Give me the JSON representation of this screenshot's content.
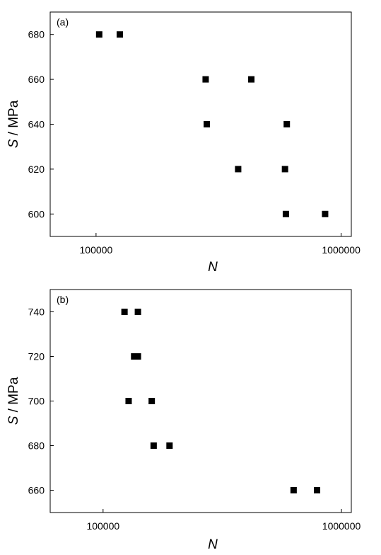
{
  "chart_data": [
    {
      "type": "scatter",
      "panel_label": "(a)",
      "xlabel": "N",
      "ylabel_symbol": "S",
      "ylabel_unit": "/ MPa",
      "x_scale": "log",
      "xticks": [
        100000,
        1000000
      ],
      "xtick_labels": [
        "100000",
        "1000000"
      ],
      "yticks": [
        600,
        620,
        640,
        660,
        680
      ],
      "ytick_labels": [
        "600",
        "620",
        "640",
        "660",
        "680"
      ],
      "xlim": [
        65000,
        1100000
      ],
      "ylim": [
        590,
        690
      ],
      "grid": false,
      "legend": "none",
      "marker": "square",
      "color": "#000000",
      "points": [
        {
          "x": 103000,
          "y": 680
        },
        {
          "x": 125000,
          "y": 680
        },
        {
          "x": 280000,
          "y": 660
        },
        {
          "x": 430000,
          "y": 660
        },
        {
          "x": 283000,
          "y": 640
        },
        {
          "x": 600000,
          "y": 640
        },
        {
          "x": 380000,
          "y": 620
        },
        {
          "x": 590000,
          "y": 620
        },
        {
          "x": 595000,
          "y": 600
        },
        {
          "x": 860000,
          "y": 600
        }
      ]
    },
    {
      "type": "scatter",
      "panel_label": "(b)",
      "xlabel": "N",
      "ylabel_symbol": "S",
      "ylabel_unit": "/ MPa",
      "x_scale": "log",
      "xticks": [
        100000,
        1000000
      ],
      "xtick_labels": [
        "100000",
        "1000000"
      ],
      "yticks": [
        660,
        680,
        700,
        720,
        740
      ],
      "ytick_labels": [
        "660",
        "680",
        "700",
        "720",
        "740"
      ],
      "xlim": [
        60000,
        1100000
      ],
      "ylim": [
        650,
        750
      ],
      "grid": false,
      "legend": "none",
      "marker": "square",
      "color": "#000000",
      "points": [
        {
          "x": 123000,
          "y": 740
        },
        {
          "x": 140000,
          "y": 740
        },
        {
          "x": 135000,
          "y": 720
        },
        {
          "x": 140000,
          "y": 720
        },
        {
          "x": 128000,
          "y": 700
        },
        {
          "x": 160000,
          "y": 700
        },
        {
          "x": 163000,
          "y": 680
        },
        {
          "x": 190000,
          "y": 680
        },
        {
          "x": 630000,
          "y": 660
        },
        {
          "x": 790000,
          "y": 660
        }
      ]
    }
  ]
}
